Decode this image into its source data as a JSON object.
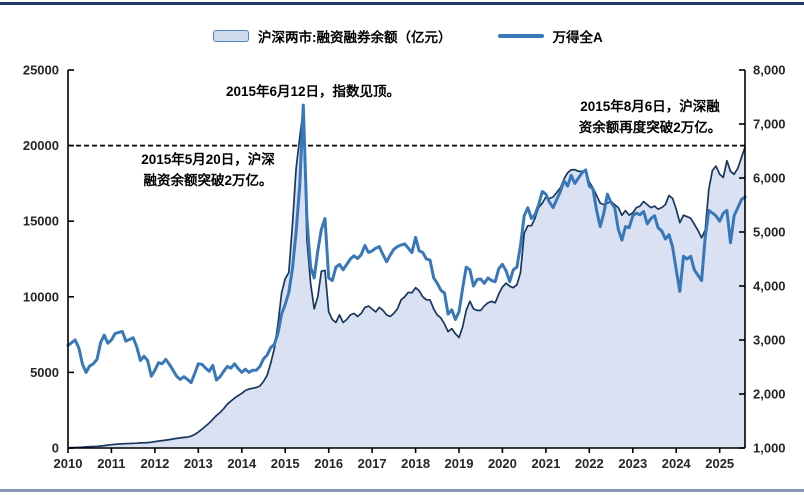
{
  "page": {
    "background": "#ffffff",
    "top_border_color": "#1f3864",
    "bottom_border_color": "#8496b0"
  },
  "legend": {
    "items": [
      {
        "label": "沪深两市:融资融券余额（亿元）",
        "swatch": "area"
      },
      {
        "label": "万得全A",
        "swatch": "line"
      }
    ]
  },
  "chart_data": {
    "type": "area+line combo",
    "title": "",
    "x": {
      "unit": "month",
      "start": "2010-01",
      "end": "2025-08",
      "tick_labels": [
        "2010",
        "2011",
        "2012",
        "2013",
        "2014",
        "2015",
        "2016",
        "2017",
        "2018",
        "2019",
        "2020",
        "2021",
        "2022",
        "2023",
        "2024",
        "2025"
      ]
    },
    "left_axis": {
      "min": 0,
      "max": 25000,
      "tick_values": [
        0,
        5000,
        10000,
        15000,
        20000,
        25000
      ],
      "tick_labels": [
        "0",
        "5000",
        "10000",
        "15000",
        "20000",
        "25000"
      ]
    },
    "right_axis": {
      "min": 1000,
      "max": 8000,
      "tick_values": [
        1000,
        2000,
        3000,
        4000,
        5000,
        6000,
        7000,
        8000
      ],
      "tick_labels": [
        "1,000",
        "2,000",
        "3,000",
        "4,000",
        "5,000",
        "6,000",
        "7,000",
        "8,000"
      ]
    },
    "series": [
      {
        "name": "沪深两市:融资融券余额（亿元）",
        "type": "area",
        "axis": "left",
        "color": "#17375e",
        "fill": "#d9e1f2",
        "values": [
          15,
          25,
          35,
          45,
          55,
          70,
          85,
          100,
          115,
          135,
          160,
          190,
          220,
          245,
          265,
          280,
          290,
          300,
          310,
          320,
          335,
          345,
          360,
          382,
          420,
          455,
          490,
          520,
          555,
          595,
          635,
          670,
          700,
          720,
          780,
          895,
          1050,
          1250,
          1450,
          1650,
          1900,
          2150,
          2350,
          2600,
          2900,
          3100,
          3300,
          3465,
          3620,
          3800,
          3900,
          3950,
          4000,
          4100,
          4400,
          4800,
          5600,
          6600,
          8200,
          10256,
          11200,
          11600,
          14800,
          18500,
          20500,
          22400,
          13800,
          10900,
          9200,
          10000,
          11700,
          11743,
          9000,
          8500,
          8300,
          8800,
          8300,
          8500,
          8800,
          8900,
          8700,
          8900,
          9300,
          9392,
          9200,
          9000,
          9300,
          9100,
          8800,
          8700,
          8900,
          9200,
          9800,
          10000,
          10300,
          10262,
          10600,
          10400,
          10000,
          9800,
          9800,
          9200,
          8800,
          8600,
          8200,
          7700,
          7900,
          7557,
          7300,
          8000,
          9100,
          9700,
          9200,
          9100,
          9100,
          9400,
          9600,
          9700,
          9600,
          10193,
          10650,
          10900,
          10700,
          10600,
          10800,
          11600,
          14200,
          14700,
          14700,
          15200,
          15900,
          16190,
          16600,
          16500,
          16600,
          16900,
          17200,
          17800,
          18200,
          18400,
          18415,
          18300,
          18300,
          18322,
          17600,
          17200,
          16700,
          16200,
          16100,
          16200,
          16300,
          16100,
          15900,
          15400,
          15700,
          15404,
          15550,
          15900,
          16000,
          16300,
          16100,
          15900,
          16000,
          15800,
          15900,
          16100,
          16700,
          16509,
          15800,
          14900,
          15400,
          15300,
          15200,
          14800,
          14400,
          13900,
          14400,
          17100,
          18350,
          18646,
          18100,
          17900,
          19000,
          18300,
          18100,
          18500,
          19200,
          19900
        ]
      },
      {
        "name": "万得全A",
        "type": "line",
        "axis": "right",
        "color": "#3878b8",
        "values": [
          2900,
          2950,
          3000,
          2850,
          2550,
          2400,
          2520,
          2560,
          2640,
          2950,
          3090,
          2940,
          3000,
          3120,
          3140,
          3160,
          2980,
          3010,
          3040,
          2870,
          2620,
          2700,
          2620,
          2330,
          2440,
          2580,
          2560,
          2640,
          2550,
          2440,
          2330,
          2270,
          2320,
          2270,
          2210,
          2380,
          2560,
          2550,
          2480,
          2420,
          2530,
          2260,
          2320,
          2420,
          2510,
          2480,
          2560,
          2470,
          2400,
          2460,
          2400,
          2440,
          2440,
          2510,
          2650,
          2720,
          2860,
          2920,
          3130,
          3480,
          3660,
          3880,
          4330,
          5000,
          5850,
          7350,
          5250,
          4350,
          4150,
          4650,
          5050,
          5250,
          4150,
          4100,
          4350,
          4400,
          4300,
          4400,
          4500,
          4560,
          4510,
          4580,
          4750,
          4620,
          4650,
          4700,
          4730,
          4580,
          4450,
          4570,
          4680,
          4730,
          4760,
          4780,
          4700,
          4620,
          4900,
          4650,
          4620,
          4500,
          4480,
          4150,
          4050,
          3920,
          3870,
          3480,
          3560,
          3380,
          3520,
          3950,
          4350,
          4300,
          4000,
          4120,
          4130,
          4050,
          4150,
          4100,
          4080,
          4320,
          4400,
          4280,
          4080,
          4300,
          4350,
          4750,
          5300,
          5450,
          5250,
          5320,
          5500,
          5750,
          5700,
          5550,
          5450,
          5600,
          5750,
          5950,
          5850,
          6050,
          5900,
          6000,
          6100,
          6150,
          5850,
          5800,
          5400,
          5100,
          5350,
          5700,
          5550,
          5450,
          5050,
          4850,
          5100,
          5080,
          5300,
          5350,
          5320,
          5380,
          5150,
          5250,
          5300,
          5080,
          5020,
          4870,
          4950,
          4720,
          4300,
          3900,
          4550,
          4500,
          4550,
          4300,
          4200,
          4100,
          4900,
          5400,
          5350,
          5300,
          5200,
          5350,
          5400,
          4800,
          5300,
          5450,
          5600,
          5650
        ]
      }
    ],
    "reference_line": {
      "axis": "left",
      "value": 20000,
      "style": "dashed",
      "color": "#000000"
    },
    "annotations": [
      {
        "text": "2015年6月12日，指数见顶。"
      },
      {
        "text": "2015年5月20日，沪深\n融资余额突破2万亿。"
      },
      {
        "text": "2015年8月6日，沪深融\n资余额再度突破2万亿。"
      }
    ]
  }
}
